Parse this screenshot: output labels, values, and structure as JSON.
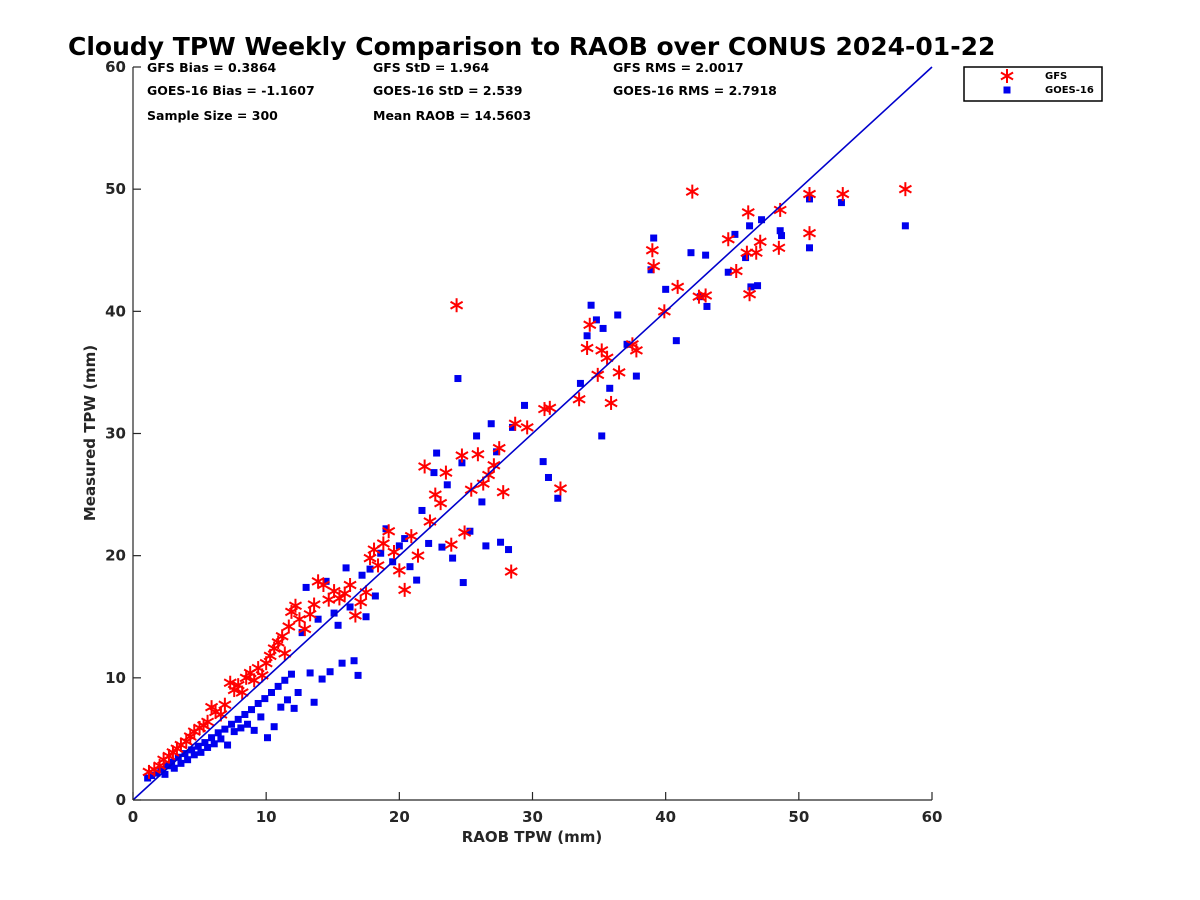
{
  "chart_data": {
    "type": "scatter",
    "title": "Cloudy TPW Weekly Comparison to RAOB over CONUS 2024-01-22",
    "xlabel": "RAOB TPW (mm)",
    "ylabel": "Measured TPW (mm)",
    "xlim": [
      0,
      60
    ],
    "ylim": [
      0,
      60
    ],
    "xticks": [
      0,
      10,
      20,
      30,
      40,
      50,
      60
    ],
    "yticks": [
      0,
      10,
      20,
      30,
      40,
      50,
      60
    ],
    "grid": false,
    "legend_position": "top-right, outside plot",
    "reference_line": {
      "x": [
        0,
        60
      ],
      "y": [
        0,
        60
      ],
      "color": "#0000cc"
    },
    "stats": [
      [
        "GFS Bias = 0.3864",
        "GFS StD = 1.964",
        "GFS RMS = 2.0017"
      ],
      [
        "GOES-16 Bias = -1.1607",
        "GOES-16 StD = 2.539",
        "GOES-16 RMS = 2.7918"
      ],
      [
        "Sample Size = 300",
        "Mean RAOB = 14.5603",
        ""
      ]
    ],
    "series": [
      {
        "name": "GFS",
        "marker": "asterisk",
        "color": "#ff0000",
        "points": [
          [
            1.2,
            2.3
          ],
          [
            1.6,
            2.5
          ],
          [
            2.0,
            2.8
          ],
          [
            2.3,
            3.3
          ],
          [
            2.7,
            3.6
          ],
          [
            3.0,
            3.9
          ],
          [
            3.3,
            4.2
          ],
          [
            3.6,
            4.5
          ],
          [
            4.0,
            4.8
          ],
          [
            4.3,
            5.2
          ],
          [
            4.6,
            5.6
          ],
          [
            5.0,
            5.9
          ],
          [
            5.3,
            6.1
          ],
          [
            5.6,
            6.4
          ],
          [
            5.9,
            7.6
          ],
          [
            6.2,
            7.2
          ],
          [
            6.6,
            7.0
          ],
          [
            6.9,
            7.8
          ],
          [
            7.3,
            9.6
          ],
          [
            7.6,
            9.0
          ],
          [
            7.9,
            9.4
          ],
          [
            8.2,
            8.8
          ],
          [
            8.5,
            10.0
          ],
          [
            8.8,
            10.4
          ],
          [
            9.1,
            9.8
          ],
          [
            9.4,
            10.8
          ],
          [
            9.7,
            10.2
          ],
          [
            10.0,
            11.2
          ],
          [
            10.3,
            11.8
          ],
          [
            10.6,
            12.4
          ],
          [
            10.9,
            12.9
          ],
          [
            11.2,
            13.4
          ],
          [
            11.4,
            12.0
          ],
          [
            11.7,
            14.2
          ],
          [
            11.9,
            15.4
          ],
          [
            12.2,
            15.9
          ],
          [
            12.5,
            14.8
          ],
          [
            12.9,
            14.0
          ],
          [
            13.3,
            15.2
          ],
          [
            13.6,
            16.0
          ],
          [
            13.9,
            17.9
          ],
          [
            14.3,
            17.6
          ],
          [
            14.7,
            16.4
          ],
          [
            15.1,
            17.1
          ],
          [
            15.5,
            16.5
          ],
          [
            15.9,
            16.9
          ],
          [
            16.3,
            17.6
          ],
          [
            16.7,
            15.1
          ],
          [
            17.1,
            16.2
          ],
          [
            17.5,
            17.0
          ],
          [
            17.8,
            19.8
          ],
          [
            18.1,
            20.5
          ],
          [
            18.4,
            19.2
          ],
          [
            18.8,
            21.0
          ],
          [
            19.2,
            22.0
          ],
          [
            19.6,
            20.3
          ],
          [
            20.0,
            18.8
          ],
          [
            20.4,
            17.2
          ],
          [
            20.9,
            21.6
          ],
          [
            21.4,
            20.0
          ],
          [
            21.9,
            27.3
          ],
          [
            22.3,
            22.8
          ],
          [
            22.7,
            25.0
          ],
          [
            23.1,
            24.3
          ],
          [
            23.5,
            26.8
          ],
          [
            23.9,
            20.9
          ],
          [
            24.3,
            40.5
          ],
          [
            24.7,
            28.2
          ],
          [
            24.9,
            21.9
          ],
          [
            25.4,
            25.4
          ],
          [
            25.9,
            28.3
          ],
          [
            26.3,
            25.9
          ],
          [
            26.7,
            26.6
          ],
          [
            27.1,
            27.4
          ],
          [
            27.5,
            28.8
          ],
          [
            27.8,
            25.2
          ],
          [
            28.4,
            18.7
          ],
          [
            28.7,
            30.8
          ],
          [
            29.6,
            30.5
          ],
          [
            30.9,
            32.0
          ],
          [
            31.3,
            32.1
          ],
          [
            32.1,
            25.5
          ],
          [
            33.5,
            32.8
          ],
          [
            34.1,
            37.0
          ],
          [
            34.3,
            38.9
          ],
          [
            34.9,
            34.8
          ],
          [
            35.2,
            36.8
          ],
          [
            35.6,
            36.2
          ],
          [
            35.9,
            32.5
          ],
          [
            36.5,
            35.0
          ],
          [
            37.5,
            37.3
          ],
          [
            37.8,
            36.8
          ],
          [
            39.0,
            45.0
          ],
          [
            39.1,
            43.7
          ],
          [
            39.9,
            40.0
          ],
          [
            40.9,
            42.0
          ],
          [
            42.0,
            49.8
          ],
          [
            42.5,
            41.2
          ],
          [
            43.0,
            41.3
          ],
          [
            44.7,
            45.9
          ],
          [
            45.3,
            43.3
          ],
          [
            46.1,
            44.8
          ],
          [
            46.2,
            48.1
          ],
          [
            46.3,
            41.4
          ],
          [
            46.8,
            44.8
          ],
          [
            47.1,
            45.7
          ],
          [
            48.5,
            45.2
          ],
          [
            48.6,
            48.3
          ],
          [
            50.8,
            49.6
          ],
          [
            50.8,
            46.4
          ],
          [
            53.3,
            49.6
          ],
          [
            58.0,
            50.0
          ]
        ]
      },
      {
        "name": "GOES-16",
        "marker": "square",
        "color": "#0000ee",
        "points": [
          [
            1.1,
            1.8
          ],
          [
            1.4,
            2.0
          ],
          [
            1.8,
            2.2
          ],
          [
            2.1,
            2.5
          ],
          [
            2.4,
            2.1
          ],
          [
            2.6,
            2.8
          ],
          [
            2.9,
            3.1
          ],
          [
            3.1,
            2.6
          ],
          [
            3.4,
            3.5
          ],
          [
            3.6,
            3.0
          ],
          [
            3.9,
            3.8
          ],
          [
            4.1,
            3.3
          ],
          [
            4.4,
            4.1
          ],
          [
            4.6,
            3.7
          ],
          [
            4.9,
            4.4
          ],
          [
            5.1,
            3.9
          ],
          [
            5.4,
            4.7
          ],
          [
            5.6,
            4.3
          ],
          [
            5.9,
            5.1
          ],
          [
            6.1,
            4.6
          ],
          [
            6.4,
            5.5
          ],
          [
            6.6,
            5.0
          ],
          [
            6.9,
            5.8
          ],
          [
            7.1,
            4.5
          ],
          [
            7.4,
            6.2
          ],
          [
            7.6,
            5.6
          ],
          [
            7.9,
            6.6
          ],
          [
            8.1,
            5.9
          ],
          [
            8.4,
            7.0
          ],
          [
            8.6,
            6.2
          ],
          [
            8.9,
            7.4
          ],
          [
            9.1,
            5.7
          ],
          [
            9.4,
            7.9
          ],
          [
            9.6,
            6.8
          ],
          [
            9.9,
            8.3
          ],
          [
            10.1,
            5.1
          ],
          [
            10.4,
            8.8
          ],
          [
            10.6,
            6.0
          ],
          [
            10.9,
            9.3
          ],
          [
            11.1,
            7.6
          ],
          [
            11.4,
            9.8
          ],
          [
            11.6,
            8.2
          ],
          [
            11.9,
            10.3
          ],
          [
            12.1,
            7.5
          ],
          [
            12.4,
            8.8
          ],
          [
            12.7,
            13.7
          ],
          [
            13.0,
            17.4
          ],
          [
            13.3,
            10.4
          ],
          [
            13.6,
            8.0
          ],
          [
            13.9,
            14.8
          ],
          [
            14.2,
            9.9
          ],
          [
            14.5,
            17.9
          ],
          [
            14.8,
            10.5
          ],
          [
            15.1,
            15.3
          ],
          [
            15.4,
            14.3
          ],
          [
            15.7,
            11.2
          ],
          [
            16.0,
            19.0
          ],
          [
            16.3,
            15.8
          ],
          [
            16.6,
            11.4
          ],
          [
            16.9,
            10.2
          ],
          [
            17.2,
            18.4
          ],
          [
            17.5,
            15.0
          ],
          [
            17.8,
            18.9
          ],
          [
            18.2,
            16.7
          ],
          [
            18.6,
            20.2
          ],
          [
            19.0,
            22.2
          ],
          [
            19.5,
            19.5
          ],
          [
            20.0,
            20.8
          ],
          [
            20.4,
            21.4
          ],
          [
            20.8,
            19.1
          ],
          [
            21.3,
            18.0
          ],
          [
            21.7,
            23.7
          ],
          [
            22.2,
            21.0
          ],
          [
            22.6,
            26.8
          ],
          [
            22.8,
            28.4
          ],
          [
            23.2,
            20.7
          ],
          [
            23.6,
            25.8
          ],
          [
            24.0,
            19.8
          ],
          [
            24.4,
            34.5
          ],
          [
            24.7,
            27.6
          ],
          [
            24.8,
            17.8
          ],
          [
            25.3,
            22.0
          ],
          [
            25.8,
            29.8
          ],
          [
            26.2,
            24.4
          ],
          [
            26.5,
            20.8
          ],
          [
            26.9,
            30.8
          ],
          [
            27.3,
            28.5
          ],
          [
            27.6,
            21.1
          ],
          [
            28.2,
            20.5
          ],
          [
            28.5,
            30.5
          ],
          [
            29.4,
            32.3
          ],
          [
            30.8,
            27.7
          ],
          [
            31.2,
            26.4
          ],
          [
            31.9,
            24.7
          ],
          [
            33.6,
            34.1
          ],
          [
            34.1,
            38.0
          ],
          [
            34.4,
            40.5
          ],
          [
            34.8,
            39.3
          ],
          [
            35.2,
            29.8
          ],
          [
            35.3,
            38.6
          ],
          [
            35.8,
            33.7
          ],
          [
            36.4,
            39.7
          ],
          [
            37.1,
            37.3
          ],
          [
            37.8,
            34.7
          ],
          [
            38.9,
            43.4
          ],
          [
            39.1,
            46.0
          ],
          [
            40.0,
            41.8
          ],
          [
            40.8,
            37.6
          ],
          [
            41.9,
            44.8
          ],
          [
            42.6,
            41.2
          ],
          [
            43.0,
            44.6
          ],
          [
            43.1,
            40.4
          ],
          [
            44.7,
            43.2
          ],
          [
            45.2,
            46.3
          ],
          [
            46.0,
            44.4
          ],
          [
            46.3,
            47.0
          ],
          [
            46.4,
            42.0
          ],
          [
            46.9,
            42.1
          ],
          [
            47.2,
            47.5
          ],
          [
            48.6,
            46.6
          ],
          [
            48.7,
            46.2
          ],
          [
            50.8,
            49.2
          ],
          [
            50.8,
            45.2
          ],
          [
            53.2,
            48.9
          ],
          [
            58.0,
            47.0
          ]
        ]
      }
    ]
  }
}
